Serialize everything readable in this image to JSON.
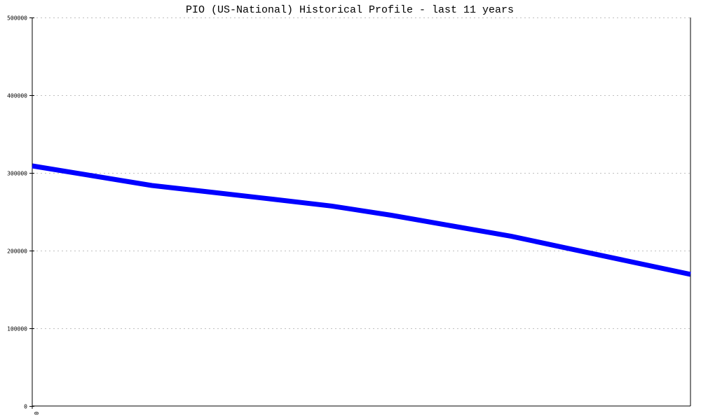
{
  "chart_data": {
    "type": "line",
    "title": "PIO (US-National) Historical Profile - last 11 years",
    "xlabel": "",
    "ylabel": "",
    "x_tick_labels": [
      "0"
    ],
    "y_tick_labels": [
      "0",
      "100000",
      "200000",
      "300000",
      "400000",
      "500000"
    ],
    "y_ticks": [
      0,
      100000,
      200000,
      300000,
      400000,
      500000
    ],
    "ylim": [
      0,
      500000
    ],
    "xlim": [
      0,
      11
    ],
    "grid": "horizontal dotted",
    "legend": "none",
    "line_color": "#0000ff",
    "grid_color": "#c0c0c0",
    "series": [
      {
        "x": [
          0,
          1,
          2,
          3,
          4,
          5,
          6,
          7,
          8,
          9,
          10,
          11
        ],
        "values": [
          309000,
          296400,
          283800,
          275100,
          266300,
          257400,
          245500,
          232000,
          218600,
          202100,
          185800,
          169500
        ]
      }
    ]
  }
}
